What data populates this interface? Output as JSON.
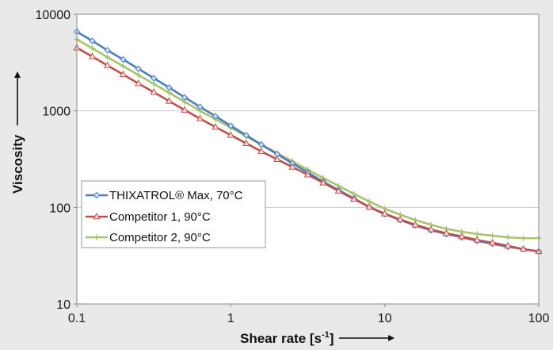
{
  "chart_data": {
    "type": "line",
    "title": "",
    "xlabel": "Shear rate [s-1]",
    "ylabel": "Viscosity",
    "xscale": "log",
    "yscale": "log",
    "xlim": [
      0.1,
      100
    ],
    "ylim": [
      10,
      10000
    ],
    "x_ticks": [
      "0.1",
      "1",
      "10",
      "100"
    ],
    "y_ticks": [
      "10",
      "100",
      "1000",
      "10000"
    ],
    "grid": "horizontal major gridlines",
    "legend_position": "left-lower",
    "series": [
      {
        "name": "THIXATROL® Max, 70°C",
        "color": "#4a7fc0",
        "marker": "diamond",
        "x": [
          0.1,
          0.126,
          0.158,
          0.2,
          0.251,
          0.316,
          0.398,
          0.501,
          0.631,
          0.794,
          1,
          1.26,
          1.58,
          2,
          2.51,
          3.16,
          3.98,
          5.01,
          6.31,
          7.94,
          10,
          12.6,
          15.8,
          20,
          25.1,
          31.6,
          39.8,
          50.1,
          63.1,
          79.4,
          100
        ],
        "y": [
          6600,
          5300,
          4240,
          3400,
          2730,
          2180,
          1740,
          1380,
          1100,
          880,
          700,
          558,
          447,
          356,
          286,
          230,
          185,
          151,
          124,
          101,
          85,
          74,
          65,
          58,
          53,
          49,
          45,
          42,
          39,
          37,
          35
        ]
      },
      {
        "name": "Competitor 1, 90°C",
        "color": "#c0504d",
        "marker": "triangle",
        "x": [
          0.1,
          0.126,
          0.158,
          0.2,
          0.251,
          0.316,
          0.398,
          0.501,
          0.631,
          0.794,
          1,
          1.26,
          1.58,
          2,
          2.51,
          3.16,
          3.98,
          5.01,
          6.31,
          7.94,
          10,
          12.6,
          15.8,
          20,
          25.1,
          31.6,
          39.8,
          50.1,
          63.1,
          79.4,
          100
        ],
        "y": [
          4500,
          3650,
          2950,
          2380,
          1920,
          1560,
          1260,
          1020,
          830,
          680,
          560,
          460,
          380,
          315,
          262,
          218,
          180,
          148,
          122,
          101,
          86,
          75,
          66,
          59,
          54,
          50,
          46,
          43,
          40,
          37,
          35
        ]
      },
      {
        "name": "Competitor 2, 90°C",
        "color": "#a8c46a",
        "marker": "plus",
        "x": [
          0.1,
          0.126,
          0.158,
          0.2,
          0.251,
          0.316,
          0.398,
          0.501,
          0.631,
          0.794,
          1,
          1.26,
          1.58,
          2,
          2.51,
          3.16,
          3.98,
          5.01,
          6.31,
          7.94,
          10,
          12.6,
          15.8,
          20,
          25.1,
          31.6,
          39.8,
          50.1,
          63.1,
          79.4,
          100
        ],
        "y": [
          5500,
          4450,
          3600,
          2900,
          2350,
          1900,
          1540,
          1240,
          1000,
          820,
          670,
          545,
          445,
          365,
          300,
          246,
          202,
          167,
          138,
          115,
          97,
          84,
          74,
          66,
          60,
          56,
          53,
          51,
          49,
          48,
          48
        ]
      }
    ]
  }
}
